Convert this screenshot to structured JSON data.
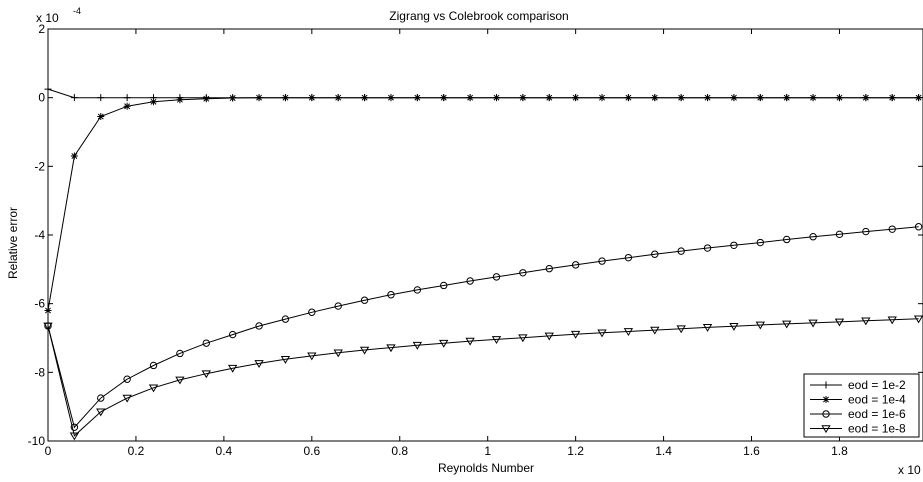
{
  "chart_data": {
    "type": "line",
    "title": "Zigrang vs Colebrook comparison",
    "xlabel": "Reynolds Number",
    "ylabel": "Relative error",
    "x_exponent_label": "x 10",
    "y_exponent_label": "x 10",
    "y_exponent_power": "-4",
    "xlim": [
      0,
      1.99
    ],
    "ylim": [
      -10,
      2
    ],
    "x_ticks": [
      0,
      0.2,
      0.4,
      0.6,
      0.8,
      1,
      1.2,
      1.4,
      1.6,
      1.8
    ],
    "x_tick_labels": [
      "0",
      "0.2",
      "0.4",
      "0.6",
      "0.8",
      "1",
      "1.2",
      "1.4",
      "1.6",
      "1.8"
    ],
    "y_ticks": [
      2,
      0,
      -2,
      -4,
      -6,
      -8,
      -10
    ],
    "y_tick_labels": [
      "2",
      "0",
      "-2",
      "-4",
      "-6",
      "-8",
      "-10"
    ],
    "x": [
      0.0,
      0.06,
      0.12,
      0.18,
      0.24,
      0.3,
      0.36,
      0.42,
      0.48,
      0.54,
      0.6,
      0.66,
      0.72,
      0.78,
      0.84,
      0.9,
      0.96,
      1.02,
      1.08,
      1.14,
      1.2,
      1.26,
      1.32,
      1.38,
      1.44,
      1.5,
      1.56,
      1.62,
      1.68,
      1.74,
      1.8,
      1.86,
      1.92,
      1.98
    ],
    "series": [
      {
        "name": "eod = 1e-2",
        "marker": "plus",
        "values": [
          0.25,
          0,
          0,
          0,
          0,
          0,
          0,
          0,
          0,
          0,
          0,
          0,
          0,
          0,
          0,
          0,
          0,
          0,
          0,
          0,
          0,
          0,
          0,
          0,
          0,
          0,
          0,
          0,
          0,
          0,
          0,
          0,
          0,
          0
        ]
      },
      {
        "name": "eod = 1e-4",
        "marker": "asterisk",
        "values": [
          -6.2,
          -1.7,
          -0.55,
          -0.25,
          -0.12,
          -0.06,
          -0.03,
          -0.01,
          0,
          0,
          0,
          0,
          0,
          0,
          0,
          0,
          0,
          0,
          0,
          0,
          0,
          0,
          0,
          0,
          0,
          0,
          0,
          0,
          0,
          0,
          0,
          0,
          0,
          0
        ]
      },
      {
        "name": "eod = 1e-6",
        "marker": "circle",
        "values": [
          -6.65,
          -9.6,
          -8.75,
          -8.2,
          -7.8,
          -7.45,
          -7.15,
          -6.9,
          -6.65,
          -6.45,
          -6.25,
          -6.07,
          -5.9,
          -5.74,
          -5.6,
          -5.47,
          -5.34,
          -5.22,
          -5.1,
          -4.98,
          -4.87,
          -4.76,
          -4.66,
          -4.56,
          -4.47,
          -4.38,
          -4.3,
          -4.22,
          -4.13,
          -4.05,
          -3.98,
          -3.9,
          -3.83,
          -3.76
        ]
      },
      {
        "name": "eod = 1e-8",
        "marker": "triangle",
        "values": [
          -6.65,
          -9.85,
          -9.15,
          -8.75,
          -8.45,
          -8.22,
          -8.04,
          -7.88,
          -7.74,
          -7.62,
          -7.52,
          -7.43,
          -7.35,
          -7.28,
          -7.21,
          -7.15,
          -7.09,
          -7.04,
          -6.99,
          -6.94,
          -6.89,
          -6.85,
          -6.81,
          -6.77,
          -6.73,
          -6.69,
          -6.66,
          -6.62,
          -6.59,
          -6.56,
          -6.53,
          -6.5,
          -6.47,
          -6.44
        ]
      }
    ],
    "legend_position": "bottom-right",
    "grid": false
  }
}
